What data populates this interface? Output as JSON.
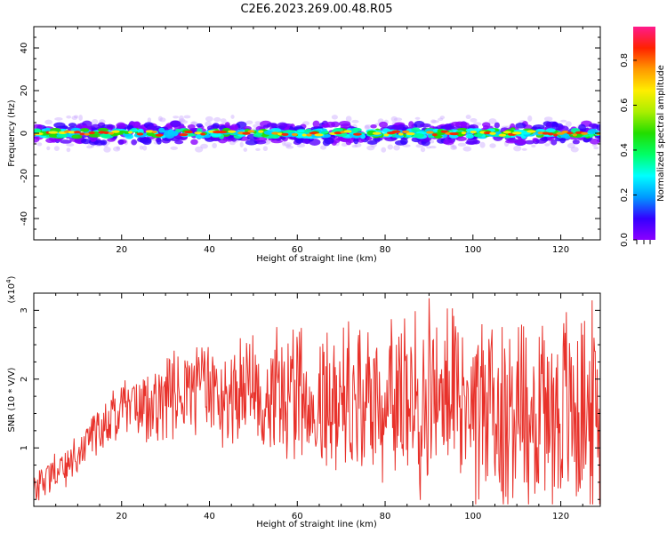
{
  "title": "C2E6.2023.269.00.48.R05",
  "chart_data": [
    {
      "type": "heatmap",
      "xlabel": "Height of straight line (km)",
      "ylabel": "Frequency (Hz)",
      "xlim": [
        0,
        129
      ],
      "ylim": [
        -50,
        50
      ],
      "x_ticks": [
        20,
        40,
        60,
        80,
        100,
        120
      ],
      "y_ticks": [
        -40,
        -20,
        0,
        20,
        40
      ],
      "description_of_values": "Energy concentrated in a narrow band around 0 Hz (about -6 to 6 Hz) across all heights; peak amplitude ~0.9 along the center line.",
      "band": {
        "center_hz": 0,
        "half_width_hz": 6
      },
      "colorbar": {
        "label": "Normalized spectral amplitude",
        "ticks": [
          0.0,
          0.2,
          0.4,
          0.6,
          0.8
        ],
        "range": [
          0,
          0.95
        ],
        "stops": [
          "#8b00ff",
          "#3300ff",
          "#0099ff",
          "#00ffff",
          "#00ff66",
          "#22dd00",
          "#aaee00",
          "#ffee00",
          "#ff9900",
          "#ff2200",
          "#ff1a8c"
        ]
      }
    },
    {
      "type": "line",
      "xlabel": "Height of straight line (km)",
      "ylabel": "SNR (10 * V/V)",
      "y_exponent_label": "(x10",
      "y_exponent_power": "4",
      "xlim": [
        0,
        129
      ],
      "ylim": [
        0.15,
        3.25
      ],
      "x_ticks": [
        20,
        40,
        60,
        80,
        100,
        120
      ],
      "y_ticks": [
        1,
        2,
        3
      ],
      "color": "#e8312a",
      "series": [
        {
          "x": [
            0,
            2,
            4,
            6,
            8,
            10,
            12,
            14,
            16,
            18,
            20,
            22,
            24,
            26,
            28,
            30,
            32,
            34,
            36,
            38,
            40,
            42,
            44,
            46,
            48,
            50,
            52,
            54,
            56,
            58,
            60,
            62,
            64,
            66,
            68,
            70,
            72,
            74,
            76,
            78,
            80,
            82,
            84,
            86,
            88,
            90,
            92,
            94,
            96,
            98,
            100,
            102,
            104,
            106,
            108,
            110,
            112,
            114,
            116,
            118,
            120,
            122,
            124,
            126,
            128
          ],
          "values": [
            0.35,
            0.55,
            0.6,
            0.7,
            0.75,
            0.8,
            1.1,
            1.2,
            1.35,
            1.45,
            1.5,
            1.55,
            1.6,
            1.65,
            1.6,
            1.7,
            1.75,
            1.8,
            1.85,
            1.8,
            1.85,
            1.8,
            1.75,
            1.8,
            1.8,
            1.85,
            1.75,
            1.8,
            1.85,
            1.7,
            1.8,
            1.75,
            1.8,
            1.75,
            1.7,
            1.75,
            1.8,
            1.7,
            1.75,
            1.7,
            1.75,
            1.7,
            1.75,
            1.7,
            1.65,
            1.75,
            1.7,
            1.7,
            1.75,
            1.8,
            1.7,
            1.6,
            1.65,
            1.5,
            1.55,
            1.6,
            1.5,
            1.55,
            1.6,
            1.55,
            1.5,
            1.55,
            1.6,
            1.5,
            1.45
          ]
        }
      ]
    }
  ]
}
